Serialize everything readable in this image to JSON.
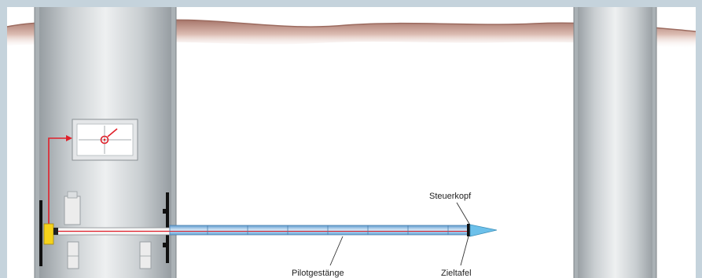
{
  "labels": {
    "steering_head": "Steuerkopf",
    "pilot_rods": "Pilotgestänge",
    "target_board": "Zieltafel"
  },
  "colors": {
    "frame": "#c5d3dc",
    "soil_top": "#b07e72",
    "soil_fade": "#f2e4de",
    "shaft_dark": "#9ea4a8",
    "shaft_light": "#e6e9eb",
    "pipe_blue": "#7fb3dd",
    "laser_red": "#e0202a",
    "clamp_yellow": "#f5d21a",
    "tip_blue": "#6cc0ea"
  },
  "icons": [
    "monitor-crosshair-icon",
    "laser-pointer-icon",
    "jacking-frame-icon"
  ]
}
